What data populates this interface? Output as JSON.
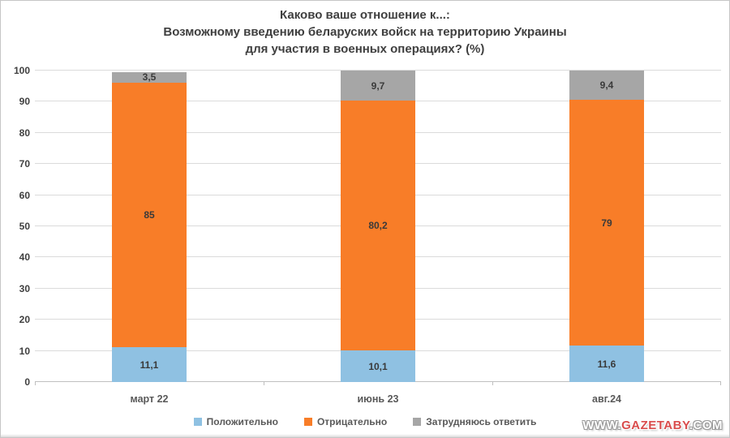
{
  "chart_data": {
    "type": "bar",
    "stacked": true,
    "title": "Каково ваше отношение к...: Возможному введению беларуских войск на территорию Украины для участия в военных операциях? (%)",
    "title_lines": [
      "Каково ваше отношение к...:",
      "Возможному введению беларуских войск на территорию Украины",
      "для участия в военных операциях? (%)"
    ],
    "categories": [
      "март 22",
      "июнь 23",
      "авг.24"
    ],
    "series": [
      {
        "name": "Положительно",
        "color": "#8fc1e2",
        "values": [
          11.1,
          10.1,
          11.6
        ],
        "labels": [
          "11,1",
          "10,1",
          "11,6"
        ]
      },
      {
        "name": "Отрицательно",
        "color": "#f87d28",
        "values": [
          85.0,
          80.2,
          79.0
        ],
        "labels": [
          "85",
          "80,2",
          "79"
        ]
      },
      {
        "name": "Затрудняюсь ответить",
        "color": "#a6a6a6",
        "values": [
          3.5,
          9.7,
          9.4
        ],
        "labels": [
          "3,5",
          "9,7",
          "9,4"
        ]
      }
    ],
    "ylim": [
      0,
      100
    ],
    "yticks": [
      0,
      10,
      20,
      30,
      40,
      50,
      60,
      70,
      80,
      90,
      100
    ],
    "grid": true,
    "legend_position": "bottom",
    "xlabel": "",
    "ylabel": ""
  },
  "watermark": {
    "prefix": "WWW.",
    "brand": "GAZETABY",
    "suffix": ".COM"
  }
}
